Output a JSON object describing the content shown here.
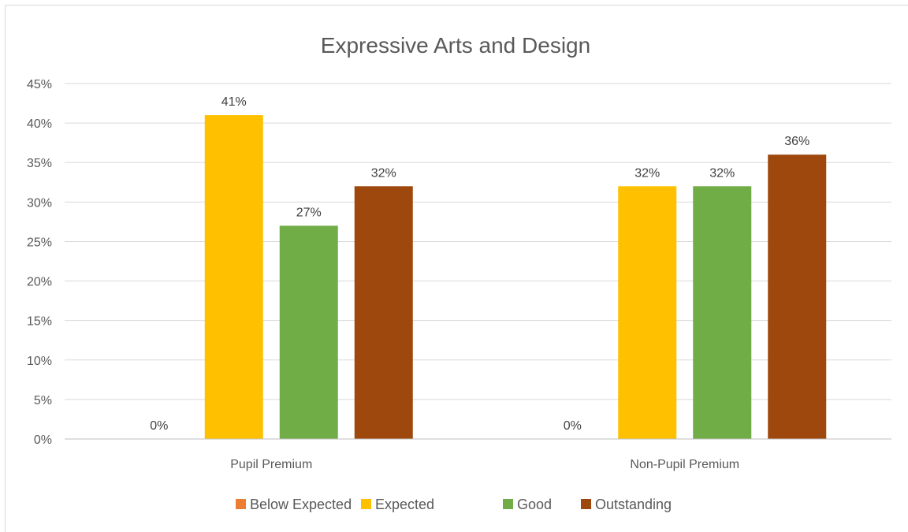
{
  "chart_data": {
    "type": "bar",
    "title": "Expressive Arts and Design",
    "categories": [
      "Pupil Premium",
      "Non-Pupil Premium"
    ],
    "series": [
      {
        "name": "Below Expected",
        "color": "#ED7D31",
        "values": [
          0,
          0
        ],
        "labels": [
          "0%",
          "0%"
        ]
      },
      {
        "name": "Expected",
        "color": "#FFC000",
        "values": [
          41,
          32
        ],
        "labels": [
          "41%",
          "32%"
        ]
      },
      {
        "name": "Good",
        "color": "#70AD47",
        "values": [
          27,
          32
        ],
        "labels": [
          "27%",
          "32%"
        ]
      },
      {
        "name": "Outstanding",
        "color": "#9E480E",
        "values": [
          32,
          36
        ],
        "labels": [
          "32%",
          "36%"
        ]
      }
    ],
    "ylim": [
      0,
      45
    ],
    "yticks": [
      "0%",
      "5%",
      "10%",
      "15%",
      "20%",
      "25%",
      "30%",
      "35%",
      "40%",
      "45%"
    ],
    "grid": true,
    "legend_position": "bottom"
  }
}
